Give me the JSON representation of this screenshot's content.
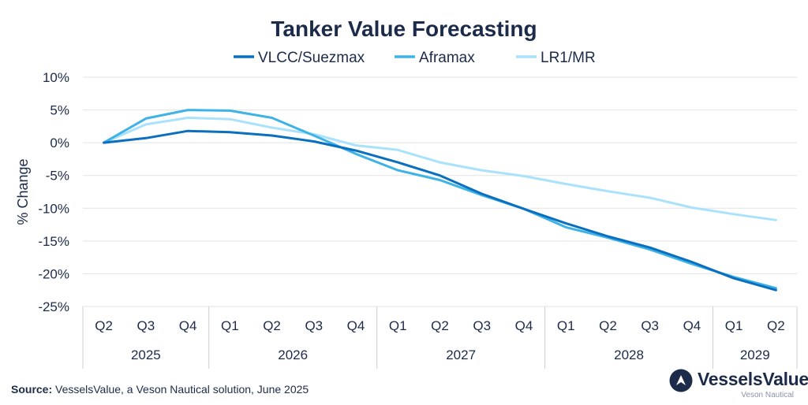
{
  "colors": {
    "vlcc": "#0a6fbf",
    "aframax": "#3fb2e6",
    "lr1mr": "#a9e2fa",
    "text": "#1c2b4a",
    "grid": "#e3e3e3"
  },
  "chart_data": {
    "type": "line",
    "title": "Tanker Value Forecasting",
    "ylabel": "% Change",
    "xlabel": "",
    "ylim": [
      -25,
      10
    ],
    "yticks": [
      10,
      5,
      0,
      -5,
      -10,
      -15,
      -20,
      -25
    ],
    "ytick_labels": [
      "10%",
      "5%",
      "0%",
      "-5%",
      "-10%",
      "-15%",
      "-20%",
      "-25%"
    ],
    "grid": true,
    "legend_position": "top-center",
    "categories": [
      "Q2",
      "Q3",
      "Q4",
      "Q1",
      "Q2",
      "Q3",
      "Q4",
      "Q1",
      "Q2",
      "Q3",
      "Q4",
      "Q1",
      "Q2",
      "Q3",
      "Q4",
      "Q1",
      "Q2"
    ],
    "year_groups": [
      {
        "year": "2025",
        "count": 3
      },
      {
        "year": "2026",
        "count": 4
      },
      {
        "year": "2027",
        "count": 4
      },
      {
        "year": "2028",
        "count": 4
      },
      {
        "year": "2029",
        "count": 2
      }
    ],
    "series": [
      {
        "name": "VLCC/Suezmax",
        "color_key": "vlcc",
        "values": [
          0,
          0.7,
          1.8,
          1.6,
          1.1,
          0.2,
          -1.2,
          -3.0,
          -5.0,
          -7.8,
          -10.1,
          -12.3,
          -14.3,
          -16.0,
          -18.2,
          -20.7,
          -22.5
        ]
      },
      {
        "name": "Aframax",
        "color_key": "aframax",
        "values": [
          0,
          3.7,
          5.0,
          4.9,
          3.8,
          1.1,
          -1.7,
          -4.2,
          -5.7,
          -8.0,
          -10.1,
          -12.9,
          -14.5,
          -16.3,
          -18.5,
          -20.5,
          -22.2
        ]
      },
      {
        "name": "LR1/MR",
        "color_key": "lr1mr",
        "values": [
          0,
          2.8,
          3.8,
          3.6,
          2.3,
          1.3,
          -0.4,
          -1.1,
          -3.0,
          -4.2,
          -5.1,
          -6.3,
          -7.4,
          -8.4,
          -9.9,
          -10.9,
          -11.8
        ]
      }
    ]
  },
  "footer": {
    "source_label": "Source:",
    "source_text": " VesselsValue, a Veson Nautical solution, June 2025"
  },
  "brand": {
    "name": "VesselsValue",
    "sub": "Veson Nautical"
  }
}
